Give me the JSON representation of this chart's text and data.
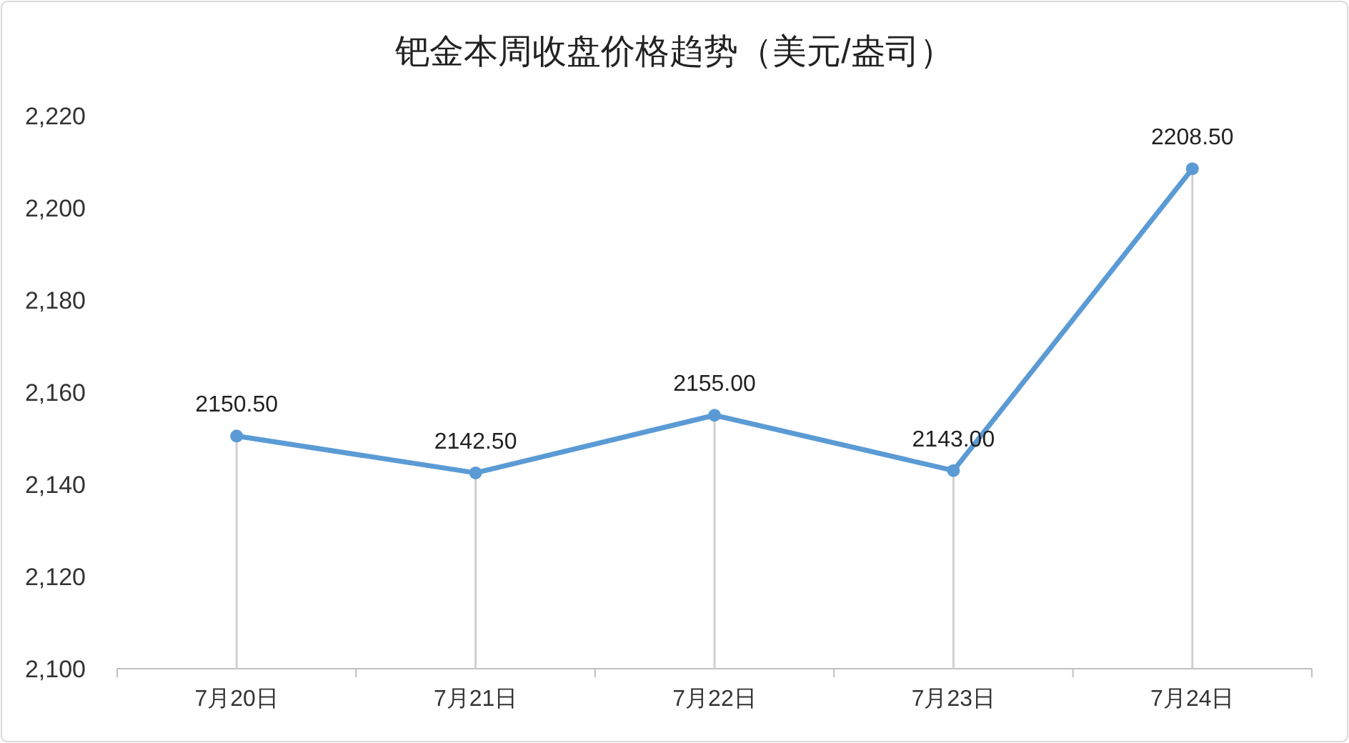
{
  "chart_data": {
    "type": "line",
    "title": "钯金本周收盘价格趋势（美元/盎司）",
    "categories": [
      "7月20日",
      "7月21日",
      "7月22日",
      "7月23日",
      "7月24日"
    ],
    "series": [
      {
        "color": "#5b9bd5",
        "values": [
          2150.5,
          2142.5,
          2155.0,
          2143.0,
          2208.5
        ],
        "value_labels": [
          "2150.50",
          "2142.50",
          "2155.00",
          "2143.00",
          "2208.50"
        ]
      }
    ],
    "ylim": [
      2100,
      2220
    ],
    "yticks": [
      {
        "value": 2100,
        "label": "2,100"
      },
      {
        "value": 2120,
        "label": "2,120"
      },
      {
        "value": 2140,
        "label": "2,140"
      },
      {
        "value": 2160,
        "label": "2,160"
      },
      {
        "value": 2180,
        "label": "2,180"
      },
      {
        "value": 2200,
        "label": "2,200"
      },
      {
        "value": 2220,
        "label": "2,220"
      }
    ],
    "marker": "circle",
    "line_style": "solid"
  }
}
